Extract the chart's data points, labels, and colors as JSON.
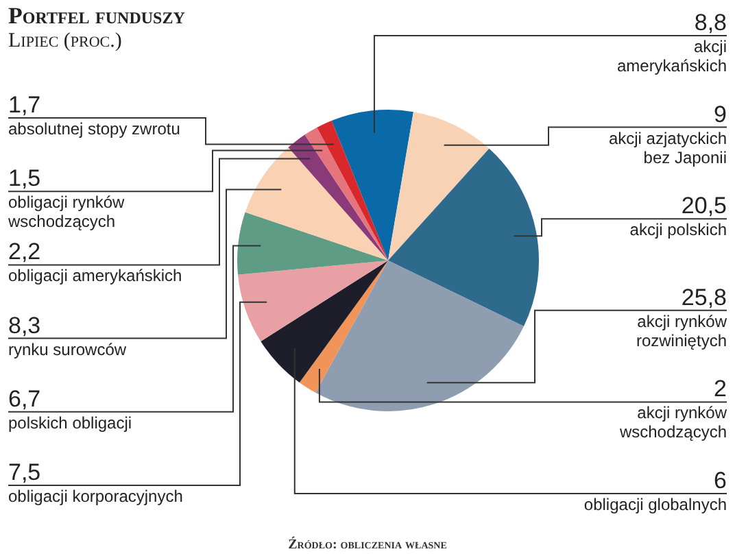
{
  "chart_data": {
    "type": "pie",
    "title": "Portfel funduszy",
    "subtitle": "Lipiec (proc.)",
    "categories": [
      "akcji amerykańskich",
      "akcji azjatyckich bez Japonii",
      "akcji polskich",
      "akcji rynków rozwiniętych",
      "akcji rynków wschodzących",
      "obligacji globalnych",
      "obligacji korporacyjnych",
      "polskich obligacji",
      "rynku surowców",
      "obligacji amerykańskich",
      "obligacji rynków wschodzących",
      "absolutnej stopy zwrotu"
    ],
    "values": [
      8.8,
      9,
      20.5,
      25.8,
      2,
      6,
      7.5,
      6.7,
      8.3,
      2.2,
      1.5,
      1.7
    ],
    "colors": [
      "#0a6aa8",
      "#f8d2b4",
      "#2e6a8c",
      "#8e9db0",
      "#f0945a",
      "#1e1e2a",
      "#e8a0a4",
      "#5e9c86",
      "#f9d2b4",
      "#8a3a78",
      "#e6747c",
      "#d8282c"
    ],
    "value_labels": [
      "8,8",
      "9",
      "20,5",
      "25,8",
      "2",
      "6",
      "7,5",
      "6,7",
      "8,3",
      "2,2",
      "1,5",
      "1,7"
    ],
    "annotations": [
      "Źródło: obliczenia własne"
    ]
  }
}
